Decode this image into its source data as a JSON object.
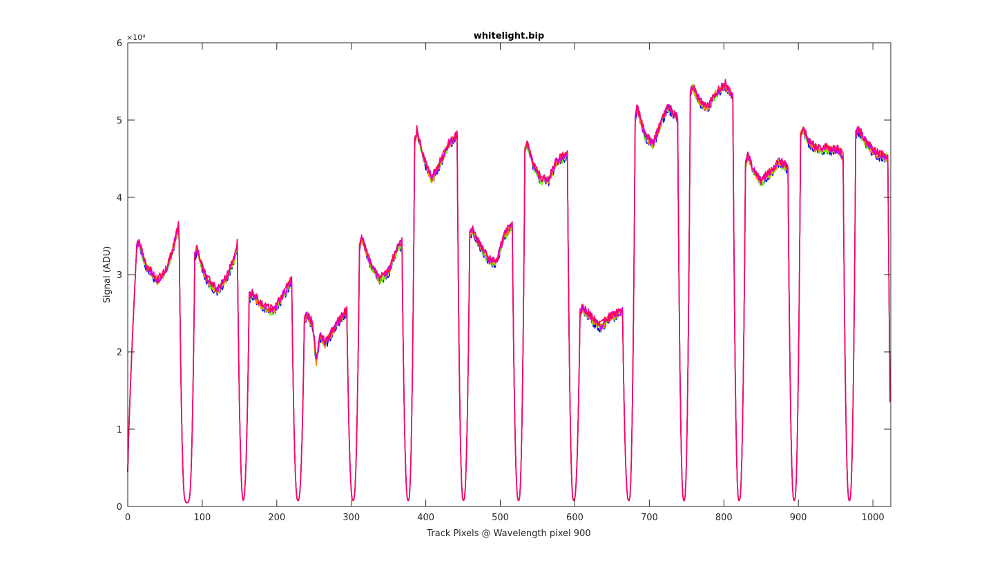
{
  "chart_data": {
    "type": "line",
    "title": "whitelight.bip",
    "xlabel": "Track Pixels @ Wavelength pixel 900",
    "ylabel": "Signal (ADU)",
    "y_exponent": "×10⁴",
    "xlim": [
      0,
      1024
    ],
    "ylim": [
      0,
      60000
    ],
    "xticks": [
      0,
      100,
      200,
      300,
      400,
      500,
      600,
      700,
      800,
      900,
      1000
    ],
    "yticks": [
      0,
      10000,
      20000,
      30000,
      40000,
      50000,
      60000
    ],
    "ytick_labels": [
      "0",
      "1",
      "2",
      "3",
      "4",
      "5",
      "6"
    ],
    "grid": false,
    "legend": "none",
    "colors": [
      "#0000ff",
      "#66ff00",
      "#ff8000",
      "#cc00ff",
      "#ff0066"
    ],
    "segments": [
      {
        "plateau": [
          12,
          69
        ],
        "profile": [
          [
            12,
            33500
          ],
          [
            15,
            34200
          ],
          [
            25,
            31000
          ],
          [
            40,
            29200
          ],
          [
            50,
            30200
          ],
          [
            60,
            33000
          ],
          [
            68,
            36200
          ],
          [
            69,
            35000
          ]
        ]
      },
      {
        "plateau": [
          90,
          147
        ],
        "profile": [
          [
            90,
            32500
          ],
          [
            93,
            33200
          ],
          [
            105,
            29500
          ],
          [
            120,
            27800
          ],
          [
            132,
            29500
          ],
          [
            143,
            32000
          ],
          [
            147,
            34000
          ]
        ]
      },
      {
        "plateau": [
          163,
          220
        ],
        "profile": [
          [
            163,
            27000
          ],
          [
            166,
            27500
          ],
          [
            180,
            26000
          ],
          [
            195,
            25200
          ],
          [
            210,
            27500
          ],
          [
            220,
            29300
          ]
        ]
      },
      {
        "plateau": [
          237,
          294
        ],
        "profile": [
          [
            237,
            24000
          ],
          [
            240,
            24800
          ],
          [
            248,
            23600
          ],
          [
            253,
            18700
          ],
          [
            258,
            22000
          ],
          [
            265,
            21000
          ],
          [
            280,
            23500
          ],
          [
            294,
            25300
          ]
        ]
      },
      {
        "plateau": [
          311,
          368
        ],
        "profile": [
          [
            311,
            33500
          ],
          [
            314,
            34800
          ],
          [
            325,
            31500
          ],
          [
            338,
            29300
          ],
          [
            350,
            30300
          ],
          [
            362,
            33500
          ],
          [
            368,
            34000
          ]
        ]
      },
      {
        "plateau": [
          385,
          442
        ],
        "profile": [
          [
            385,
            47000
          ],
          [
            388,
            48500
          ],
          [
            398,
            44800
          ],
          [
            408,
            42300
          ],
          [
            420,
            44500
          ],
          [
            432,
            47000
          ],
          [
            442,
            48000
          ]
        ]
      },
      {
        "plateau": [
          459,
          516
        ],
        "profile": [
          [
            459,
            35000
          ],
          [
            462,
            35800
          ],
          [
            472,
            33800
          ],
          [
            485,
            31800
          ],
          [
            495,
            31500
          ],
          [
            505,
            35000
          ],
          [
            516,
            36500
          ]
        ]
      },
      {
        "plateau": [
          533,
          590
        ],
        "profile": [
          [
            533,
            46000
          ],
          [
            536,
            46800
          ],
          [
            545,
            44000
          ],
          [
            555,
            42200
          ],
          [
            565,
            42300
          ],
          [
            575,
            44500
          ],
          [
            590,
            45500
          ]
        ]
      },
      {
        "plateau": [
          607,
          664
        ],
        "profile": [
          [
            607,
            25000
          ],
          [
            611,
            25700
          ],
          [
            625,
            24000
          ],
          [
            635,
            23200
          ],
          [
            645,
            24300
          ],
          [
            664,
            25300
          ]
        ]
      },
      {
        "plateau": [
          681,
          738
        ],
        "profile": [
          [
            681,
            50500
          ],
          [
            684,
            51500
          ],
          [
            694,
            48000
          ],
          [
            705,
            46800
          ],
          [
            715,
            49500
          ],
          [
            725,
            51700
          ],
          [
            738,
            50000
          ]
        ]
      },
      {
        "plateau": [
          755,
          812
        ],
        "profile": [
          [
            755,
            53500
          ],
          [
            758,
            54200
          ],
          [
            770,
            52000
          ],
          [
            778,
            51500
          ],
          [
            790,
            53500
          ],
          [
            802,
            54500
          ],
          [
            812,
            53000
          ]
        ]
      },
      {
        "plateau": [
          829,
          886
        ],
        "profile": [
          [
            829,
            44000
          ],
          [
            832,
            45500
          ],
          [
            840,
            43500
          ],
          [
            850,
            42000
          ],
          [
            862,
            43200
          ],
          [
            874,
            44500
          ],
          [
            886,
            43800
          ]
        ]
      },
      {
        "plateau": [
          903,
          960
        ],
        "profile": [
          [
            903,
            48000
          ],
          [
            906,
            48800
          ],
          [
            915,
            47000
          ],
          [
            925,
            46300
          ],
          [
            940,
            46300
          ],
          [
            955,
            46000
          ],
          [
            960,
            45000
          ]
        ]
      },
      {
        "plateau": [
          977,
          1020
        ],
        "profile": [
          [
            977,
            48000
          ],
          [
            980,
            48800
          ],
          [
            990,
            47200
          ],
          [
            1000,
            46000
          ],
          [
            1010,
            45300
          ],
          [
            1018,
            45300
          ],
          [
            1020,
            45000
          ]
        ]
      }
    ],
    "gap_floor": 800,
    "end_value": 13500
  }
}
